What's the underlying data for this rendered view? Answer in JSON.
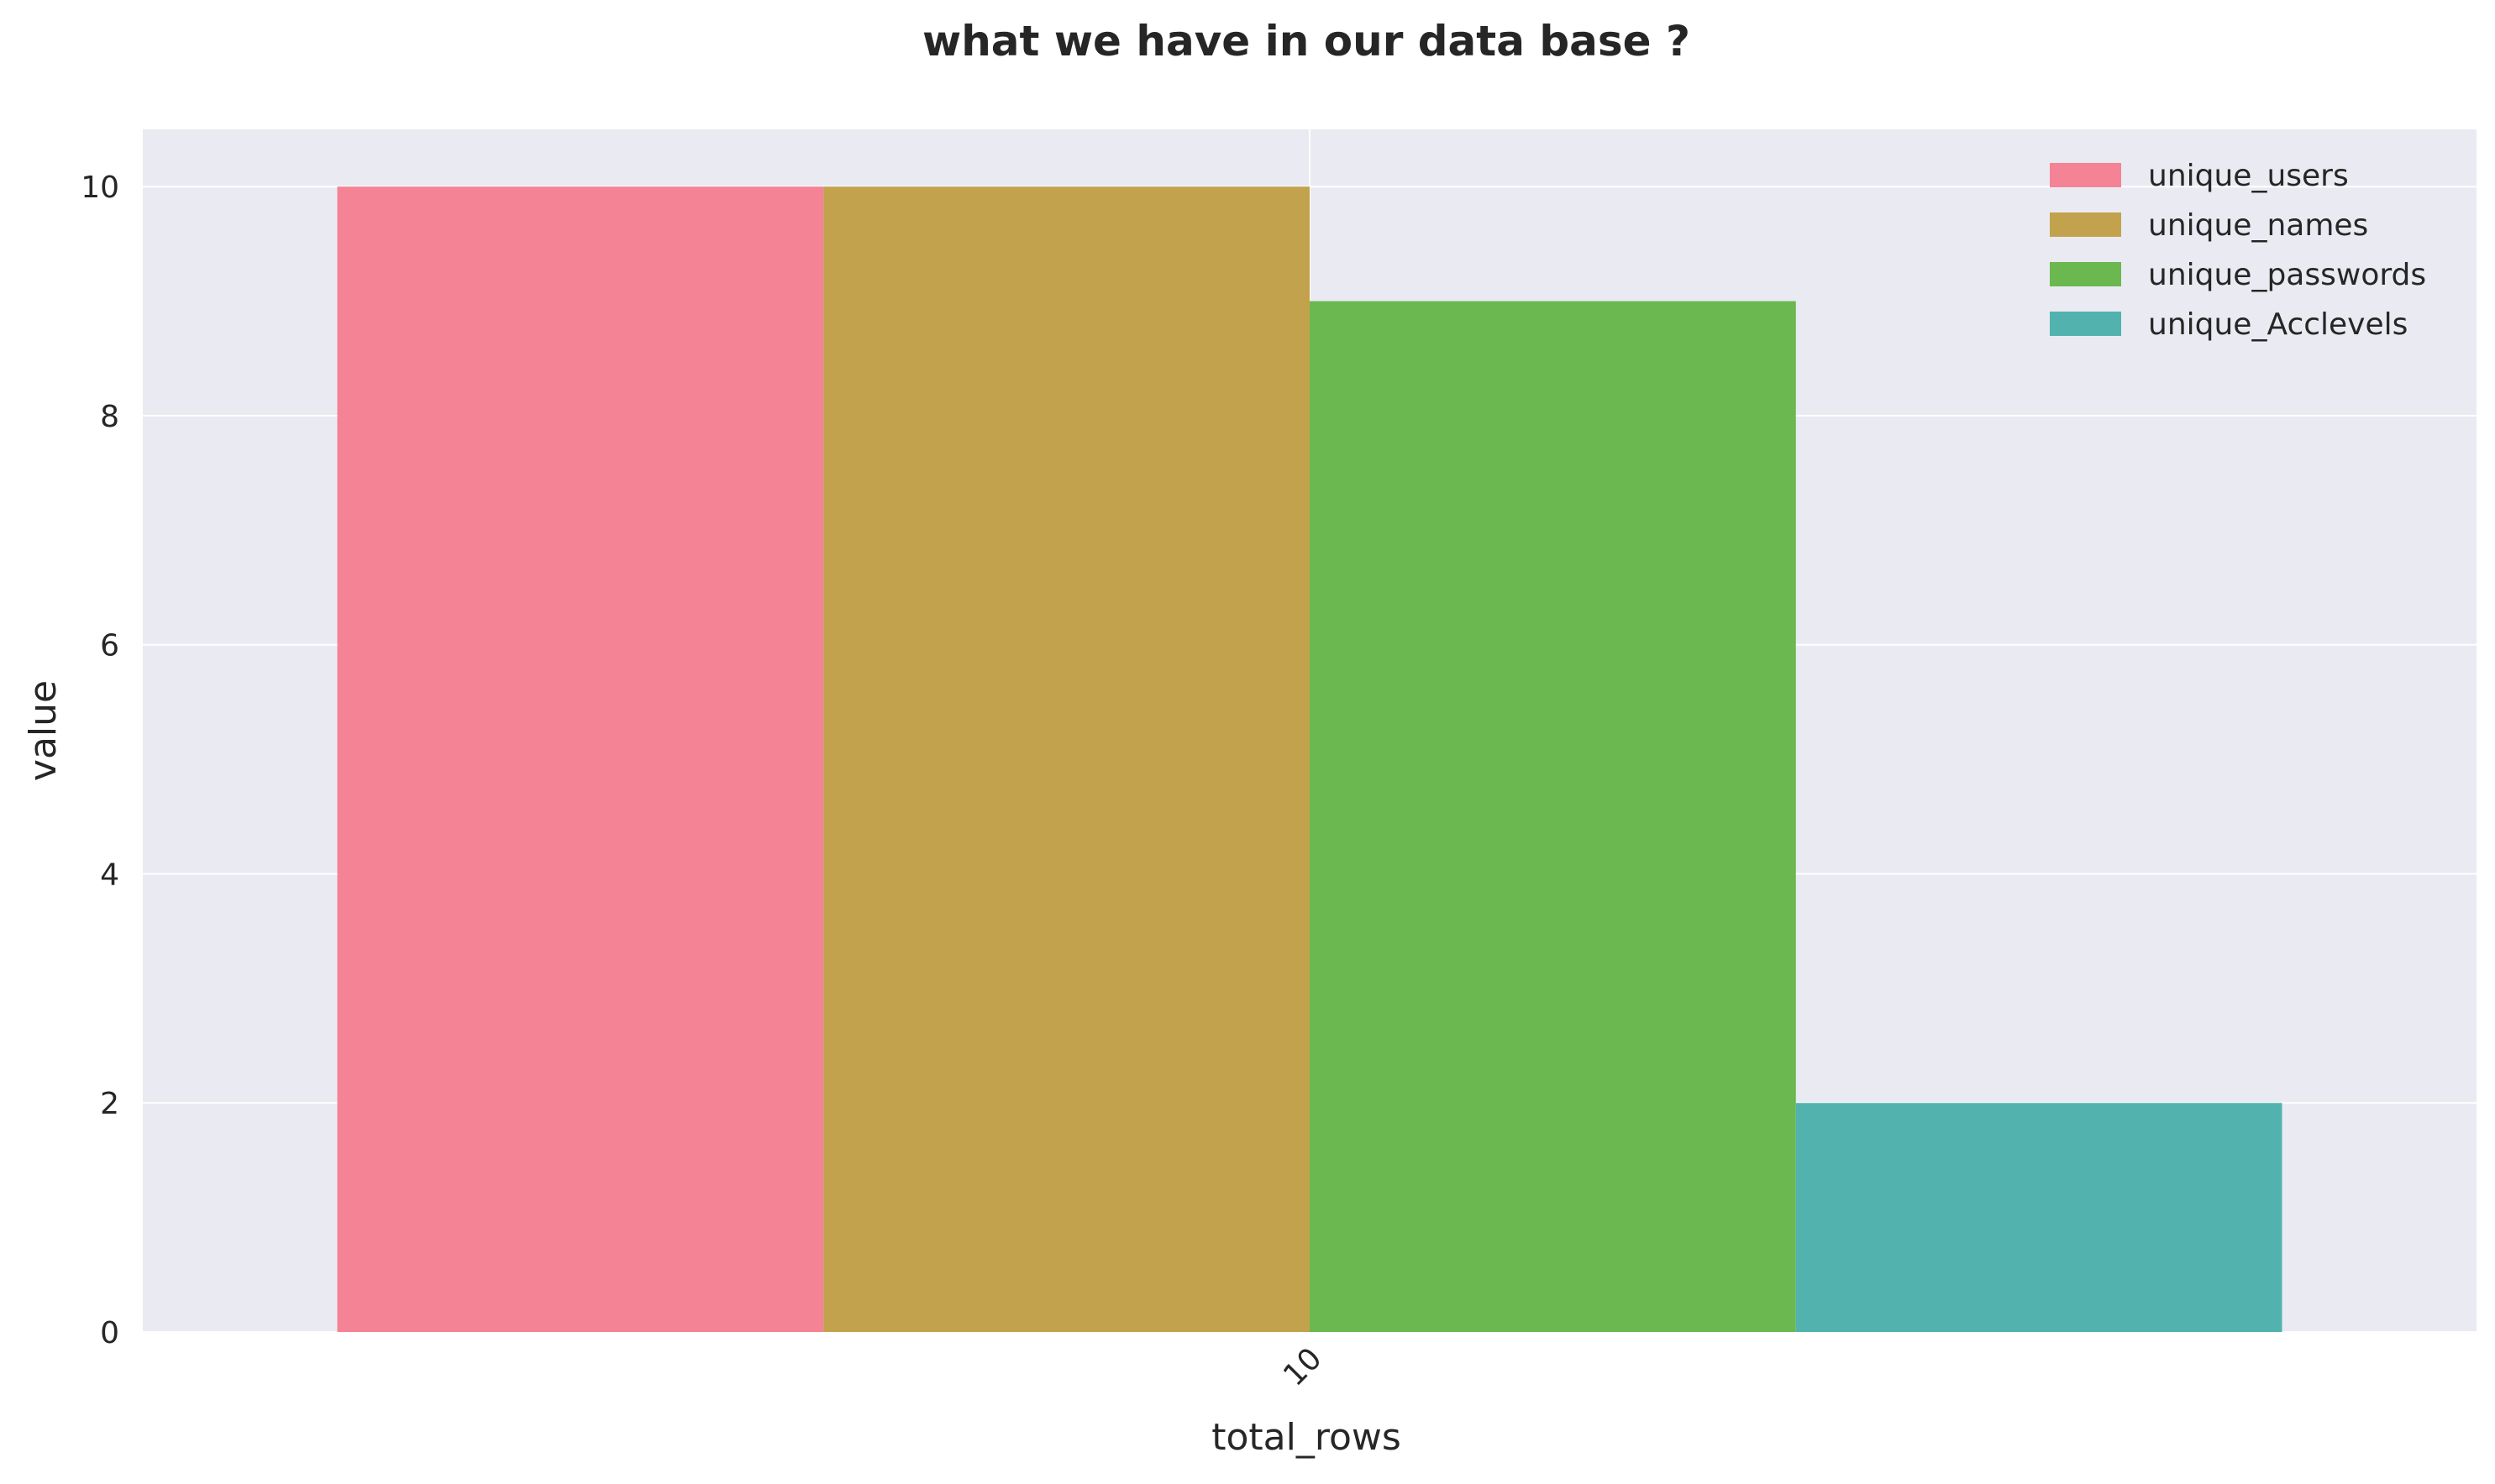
{
  "chart_data": {
    "type": "bar",
    "title": "what we have in our data base ?",
    "xlabel": "total_rows",
    "ylabel": "value",
    "categories": [
      "10"
    ],
    "series": [
      {
        "name": "unique_users",
        "values": [
          10
        ],
        "color": "#f48396"
      },
      {
        "name": "unique_names",
        "values": [
          10
        ],
        "color": "#c2a24c"
      },
      {
        "name": "unique_passwords",
        "values": [
          9
        ],
        "color": "#6ab84f"
      },
      {
        "name": "unique_Acclevels",
        "values": [
          2
        ],
        "color": "#52b3ae"
      }
    ],
    "ylim": [
      0,
      10.5
    ],
    "yticks": [
      0,
      2,
      4,
      6,
      8,
      10
    ],
    "grid": true,
    "legend_position": "top-right",
    "background": "#eaeaf2"
  }
}
